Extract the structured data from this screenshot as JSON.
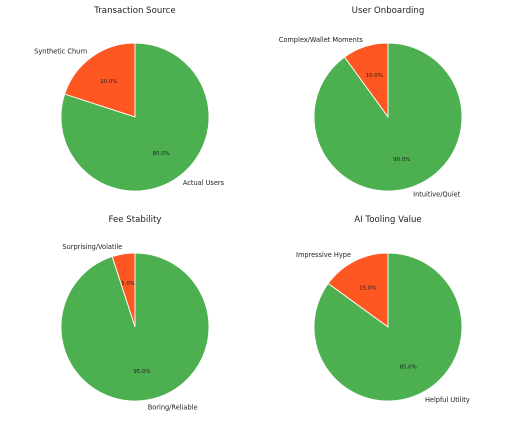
{
  "colors": {
    "green": "#4caf50",
    "orange": "#ff5722"
  },
  "chart_data": [
    {
      "type": "pie",
      "title": "Transaction Source",
      "slices": [
        {
          "label": "Synthetic Churn",
          "value": 20.0,
          "pct_label": "20.0%",
          "color": "#ff5722"
        },
        {
          "label": "Actual Users",
          "value": 80.0,
          "pct_label": "80.0%",
          "color": "#4caf50"
        }
      ]
    },
    {
      "type": "pie",
      "title": "User Onboarding",
      "slices": [
        {
          "label": "Complex/Wallet Moments",
          "value": 10.0,
          "pct_label": "10.0%",
          "color": "#ff5722"
        },
        {
          "label": "Intuitive/Quiet",
          "value": 90.0,
          "pct_label": "90.0%",
          "color": "#4caf50"
        }
      ]
    },
    {
      "type": "pie",
      "title": "Fee Stability",
      "slices": [
        {
          "label": "Surprising/Volatile",
          "value": 5.0,
          "pct_label": "5.0%",
          "color": "#ff5722"
        },
        {
          "label": "Boring/Reliable",
          "value": 95.0,
          "pct_label": "95.0%",
          "color": "#4caf50"
        }
      ]
    },
    {
      "type": "pie",
      "title": "AI Tooling Value",
      "slices": [
        {
          "label": "Impressive Hype",
          "value": 15.0,
          "pct_label": "15.0%",
          "color": "#ff5722"
        },
        {
          "label": "Helpful Utility",
          "value": 85.0,
          "pct_label": "85.0%",
          "color": "#4caf50"
        }
      ]
    }
  ]
}
